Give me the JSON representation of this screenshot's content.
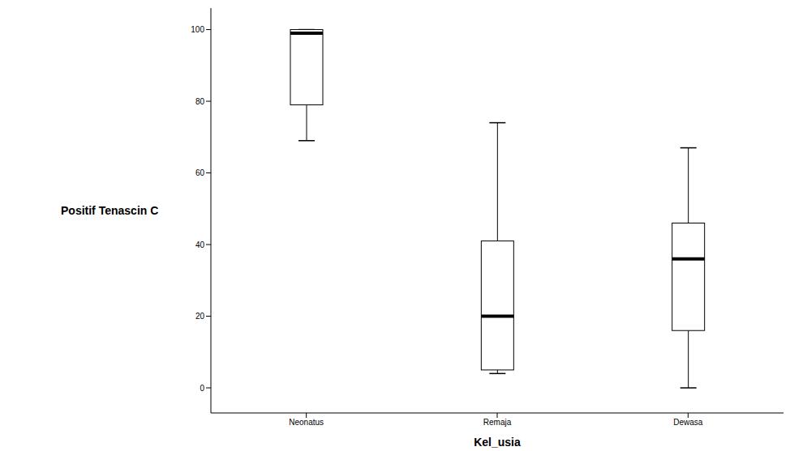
{
  "chart_data": {
    "type": "box",
    "categories": [
      "Neonatus",
      "Remaja",
      "Dewasa"
    ],
    "min": [
      69,
      4,
      0
    ],
    "q1": [
      79,
      5,
      16
    ],
    "median": [
      99,
      20,
      36
    ],
    "q3": [
      100,
      41,
      46
    ],
    "max": [
      100,
      74,
      67
    ],
    "x_label": "Kel_usia",
    "y_label": "Positif Tenascin C",
    "ylim": [
      -7,
      106
    ],
    "yticks": [
      0,
      20,
      40,
      60,
      80,
      100
    ],
    "color": "#ffffff"
  }
}
